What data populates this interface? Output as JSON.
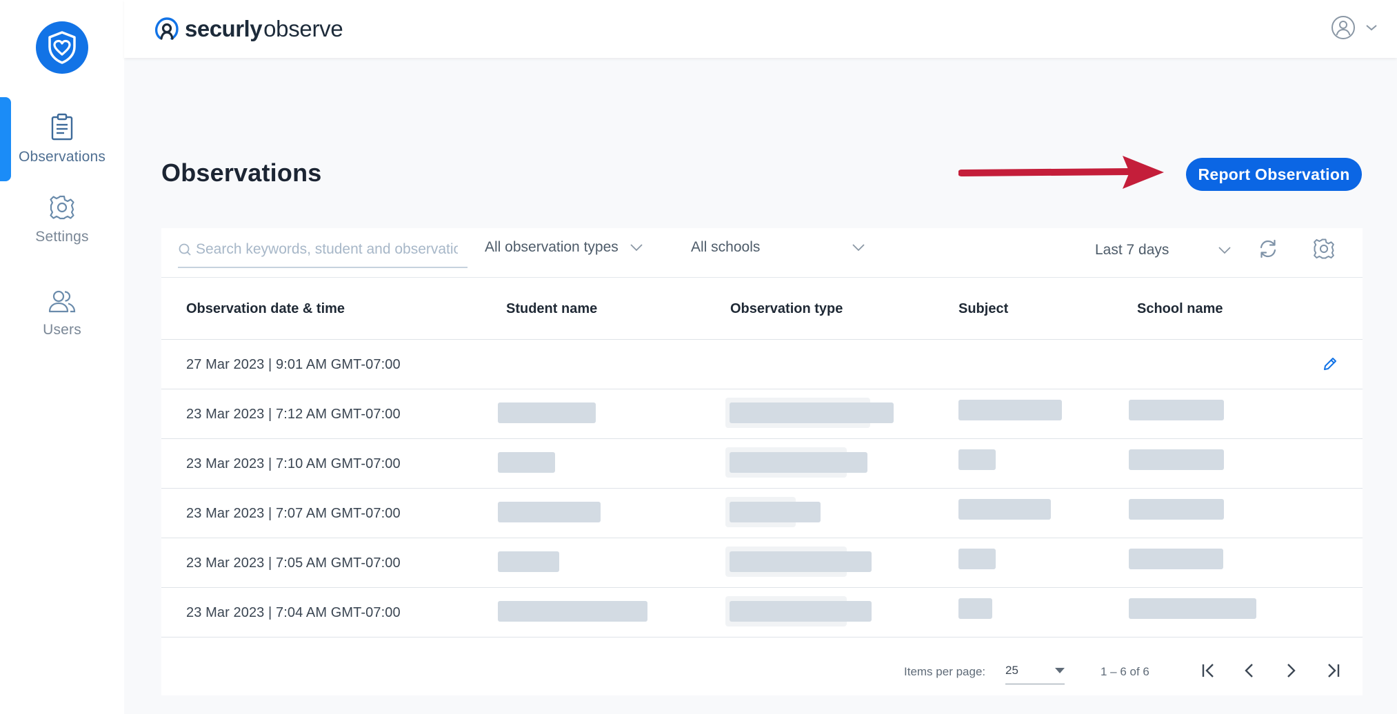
{
  "brand": {
    "name_bold": "securly",
    "name_light": "observe"
  },
  "sidebar": {
    "items": [
      {
        "label": "Observations",
        "icon": "clipboard-icon",
        "active": true
      },
      {
        "label": "Settings",
        "icon": "gear-icon",
        "active": false
      },
      {
        "label": "Users",
        "icon": "users-icon",
        "active": false
      }
    ]
  },
  "main": {
    "title": "Observations",
    "report_button": "Report Observation"
  },
  "filters": {
    "search_placeholder": "Search keywords, student and observation",
    "type": "All observation types",
    "school": "All schools",
    "range": "Last 7 days"
  },
  "table": {
    "columns": [
      "Observation date & time",
      "Student name",
      "Observation type",
      "Subject",
      "School name"
    ],
    "rows": [
      {
        "date": "27 Mar 2023 | 9:01 AM GMT-07:00"
      },
      {
        "date": "23 Mar 2023 | 7:12 AM GMT-07:00"
      },
      {
        "date": "23 Mar 2023 | 7:10 AM GMT-07:00"
      },
      {
        "date": "23 Mar 2023 | 7:07 AM GMT-07:00"
      },
      {
        "date": "23 Mar 2023 | 7:05 AM GMT-07:00"
      },
      {
        "date": "23 Mar 2023 | 7:04 AM GMT-07:00"
      }
    ]
  },
  "pagination": {
    "items_per_page_label": "Items per page:",
    "items_per_page": "25",
    "range": "1 – 6 of 6"
  },
  "colors": {
    "accent": "#0b66e4",
    "arrow": "#c41e3a",
    "active_bar": "#1b8cf7"
  }
}
